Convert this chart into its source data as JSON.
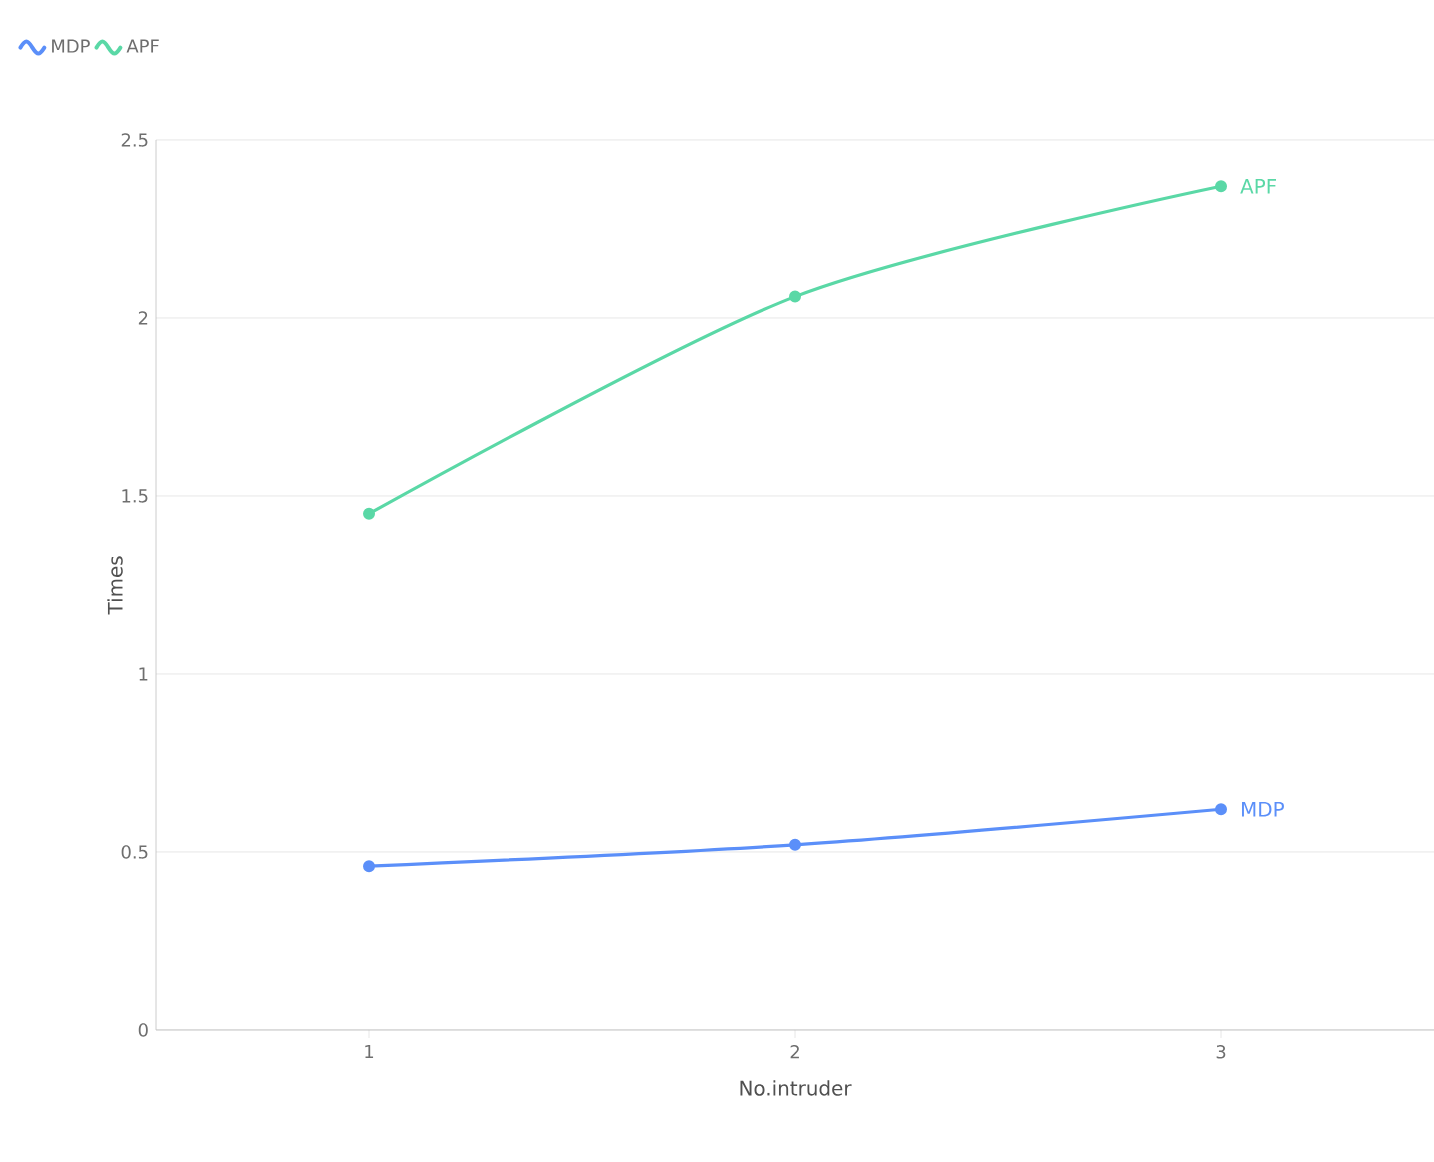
{
  "chart_data": {
    "type": "line",
    "xlabel": "No.intruder",
    "ylabel": "Times",
    "x": [
      1,
      2,
      3
    ],
    "series": [
      {
        "name": "MDP",
        "color": "#5b8ff9",
        "values": [
          0.46,
          0.52,
          0.62
        ]
      },
      {
        "name": "APF",
        "color": "#5ad8a6",
        "values": [
          1.45,
          2.06,
          2.37
        ]
      }
    ],
    "xlim": [
      0.5,
      3.5
    ],
    "xticks": [
      1,
      2,
      3
    ],
    "ylim": [
      0,
      2.5
    ],
    "yticks": [
      0,
      0.5,
      1,
      1.5,
      2,
      2.5
    ],
    "grid": "y",
    "legend": "top left",
    "marker": "circle",
    "line_style": "solid"
  }
}
